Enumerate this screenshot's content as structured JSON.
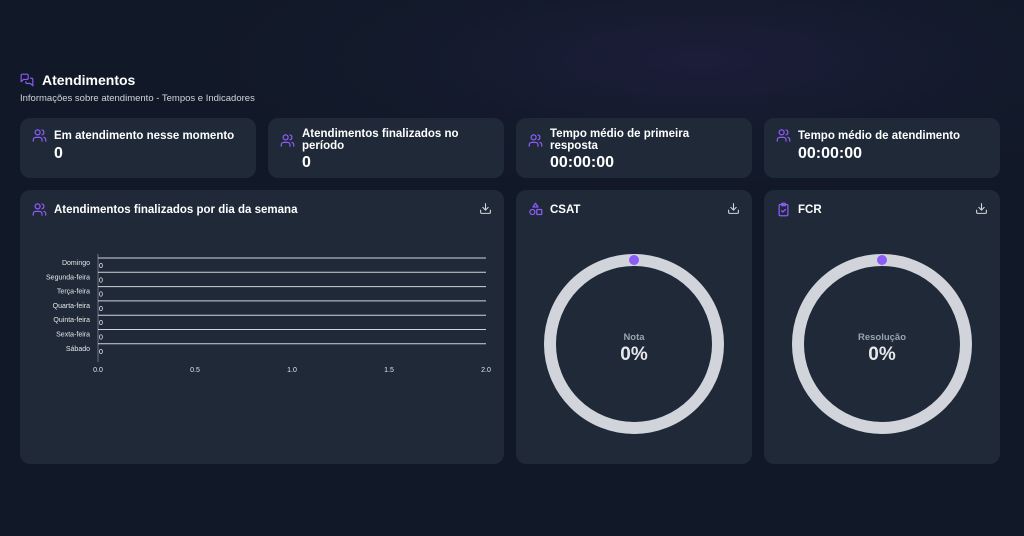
{
  "header": {
    "title": "Atendimentos",
    "subtitle": "Informações sobre atendimento - Tempos e Indicadores"
  },
  "kpis": [
    {
      "label": "Em atendimento nesse momento",
      "value": "0",
      "icon": "users-icon"
    },
    {
      "label": "Atendimentos finalizados no período",
      "value": "0",
      "icon": "users-icon"
    },
    {
      "label": "Tempo médio de primeira resposta",
      "value": "00:00:00",
      "icon": "users-icon"
    },
    {
      "label": "Tempo médio de atendimento",
      "value": "00:00:00",
      "icon": "users-icon"
    }
  ],
  "weekday_panel": {
    "title": "Atendimentos finalizados por dia da semana"
  },
  "csat": {
    "title": "CSAT",
    "label": "Nota",
    "value": "0%",
    "fraction": 0
  },
  "fcr": {
    "title": "FCR",
    "label": "Resolução",
    "value": "0%",
    "fraction": 0
  },
  "colors": {
    "accent": "#8b5cf6",
    "card": "#1f2937",
    "gauge_track": "#d1d5db"
  },
  "chart_data": {
    "type": "bar",
    "orientation": "horizontal",
    "categories": [
      "Domingo",
      "Segunda-feira",
      "Terça-feira",
      "Quarta-feira",
      "Quinta-feira",
      "Sexta-feira",
      "Sábado"
    ],
    "values": [
      0,
      0,
      0,
      0,
      0,
      0,
      0
    ],
    "value_labels": [
      "0",
      "0",
      "0",
      "0",
      "0",
      "0",
      "0"
    ],
    "xticks": [
      "0.0",
      "0.5",
      "1.0",
      "1.5",
      "2.0"
    ],
    "xlim": [
      0,
      2
    ],
    "grid": true
  }
}
